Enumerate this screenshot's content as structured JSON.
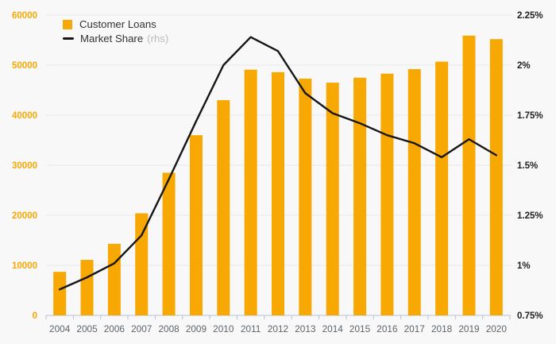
{
  "legend": {
    "customer_loans": "Customer Loans",
    "market_share": "Market Share",
    "market_share_suffix": "(rhs)"
  },
  "colors": {
    "bar": "#F7A802",
    "line": "#161616",
    "left_axis_text": "#F7A802",
    "right_axis_text": "#1f1f1f",
    "x_axis_text": "#5d646b",
    "grid": "#e9e9e9",
    "axis_line": "#b3c1da",
    "background": "#f8f8f8",
    "legend_text": "#323232",
    "legend_muted": "#bcbcbc"
  },
  "chart_data": {
    "type": "bar+line",
    "title": "",
    "categories": [
      "2004",
      "2005",
      "2006",
      "2007",
      "2008",
      "2009",
      "2010",
      "2011",
      "2012",
      "2013",
      "2014",
      "2015",
      "2016",
      "2017",
      "2018",
      "2019",
      "2020"
    ],
    "series": [
      {
        "name": "Customer Loans",
        "type": "bar",
        "axis": "left",
        "values": [
          8700,
          11100,
          14300,
          20400,
          28500,
          36000,
          43000,
          49100,
          48600,
          47300,
          46500,
          47500,
          48300,
          49200,
          50700,
          55900,
          55200
        ]
      },
      {
        "name": "Market Share (rhs)",
        "type": "line",
        "axis": "right",
        "values": [
          0.88,
          0.94,
          1.01,
          1.15,
          1.43,
          1.72,
          2.0,
          2.14,
          2.07,
          1.86,
          1.76,
          1.71,
          1.65,
          1.61,
          1.54,
          1.63,
          1.55
        ]
      }
    ],
    "left_axis": {
      "min": 0,
      "max": 60000,
      "tick_step": 10000,
      "ticks": [
        "0",
        "10000",
        "20000",
        "30000",
        "40000",
        "50000",
        "60000"
      ]
    },
    "right_axis": {
      "min": 0.75,
      "max": 2.25,
      "tick_step": 0.25,
      "ticks": [
        "0.75%",
        "1%",
        "1.25%",
        "1.5%",
        "1.75%",
        "2%",
        "2.25%"
      ]
    },
    "grid": true,
    "legend_position": "top-left"
  }
}
